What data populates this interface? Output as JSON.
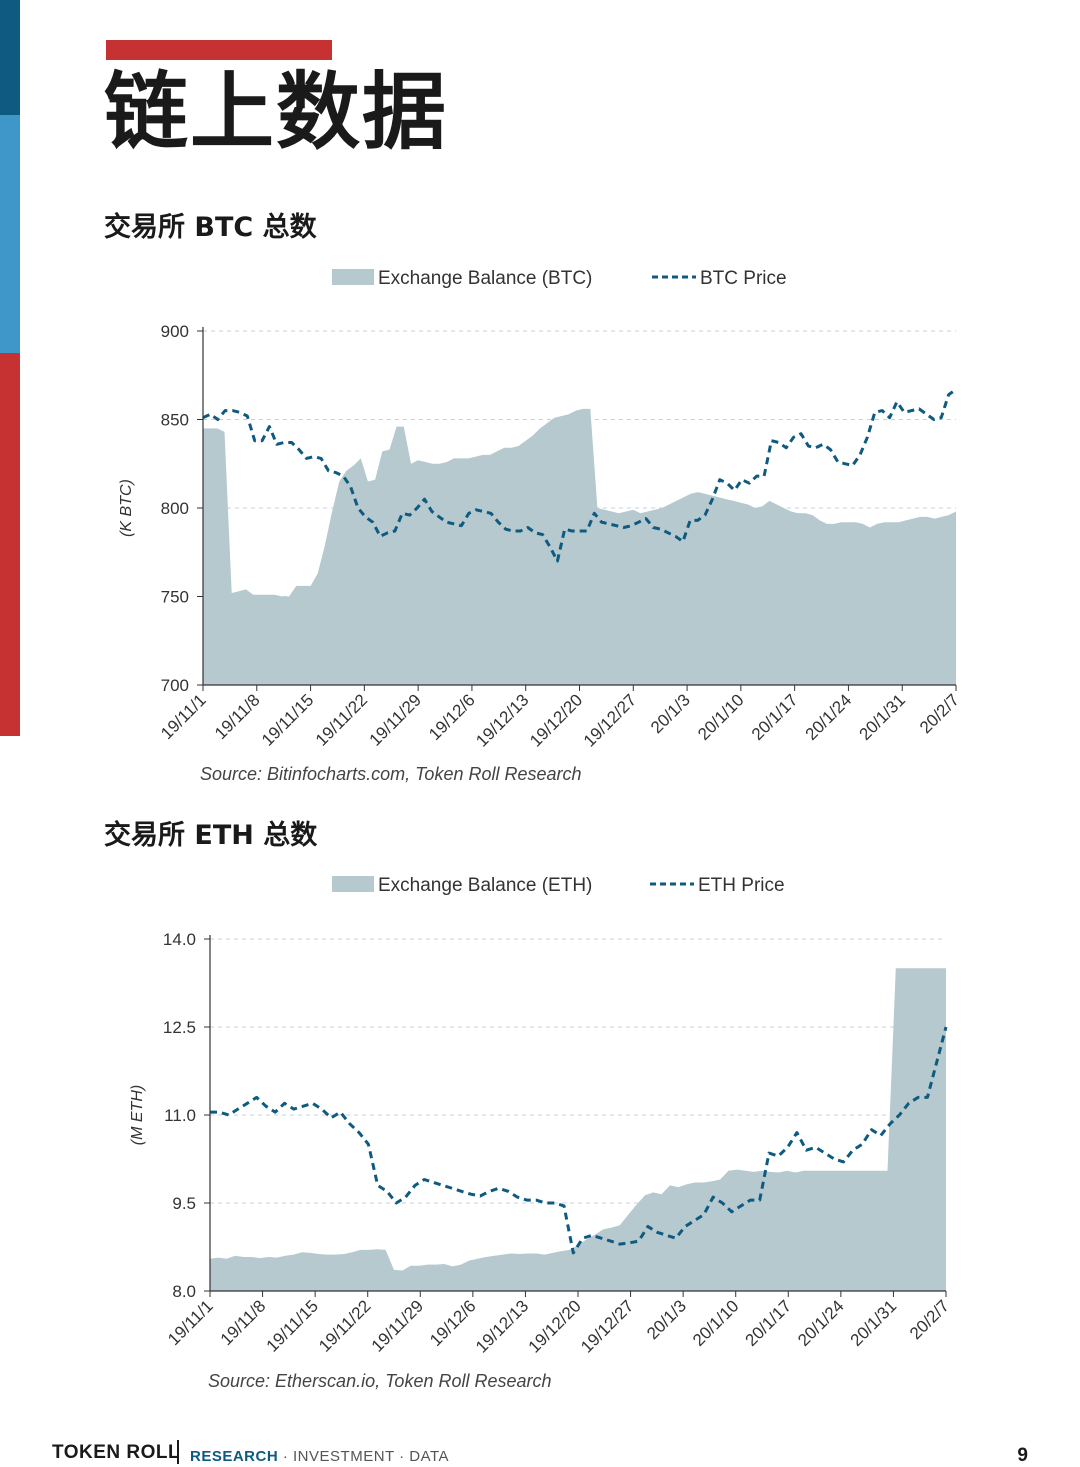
{
  "page": {
    "title": "链上数据",
    "footer_brand": "TOKEN ROLL",
    "footer_tag_first": "RESEARCH",
    "footer_tag_rest": " · INVESTMENT · DATA",
    "page_number": "9",
    "accent_color": "#c63231",
    "side_colors": [
      "#0e5a80",
      "#3f97c9",
      "#c63231"
    ]
  },
  "sections": {
    "btc_title": "交易所 BTC 总数",
    "eth_title": "交易所 ETH 总数"
  },
  "chart_data": [
    {
      "type": "area",
      "title": "",
      "xlabel": "",
      "ylabel": "(K BTC)",
      "ylim": [
        700,
        900
      ],
      "yticks": [
        700,
        750,
        800,
        850,
        900
      ],
      "xticks": [
        "19/11/1",
        "19/11/8",
        "19/11/15",
        "19/11/22",
        "19/11/29",
        "19/12/6",
        "19/12/13",
        "19/12/20",
        "19/12/27",
        "20/1/3",
        "20/1/10",
        "20/1/17",
        "20/1/24",
        "20/1/31",
        "20/2/7"
      ],
      "grid": "horizontal dashed",
      "legend_position": "top",
      "source": "Source: Bitinfocharts.com, Token Roll Research",
      "area_color": "#b5c9cf",
      "line_color": "#0e5a80",
      "series": [
        {
          "name": "Exchange Balance (BTC)",
          "style": "area",
          "values": [
            845,
            845,
            845,
            843,
            752,
            753,
            754,
            751,
            751,
            751,
            751,
            750,
            750,
            756,
            756,
            756,
            763,
            779,
            798,
            815,
            821,
            824,
            828,
            815,
            816,
            832,
            833,
            846,
            846,
            825,
            827,
            826,
            825,
            825,
            826,
            828,
            828,
            828,
            829,
            830,
            830,
            832,
            834,
            834,
            835,
            838,
            841,
            845,
            848,
            851,
            852,
            853,
            855,
            856,
            856,
            800,
            799,
            798,
            797,
            798,
            799,
            797,
            798,
            799,
            800,
            802,
            804,
            806,
            808,
            809,
            808,
            807,
            806,
            805,
            804,
            803,
            802,
            800,
            801,
            804,
            802,
            800,
            798,
            797,
            797,
            796,
            793,
            791,
            791,
            792,
            792,
            792,
            791,
            789,
            791,
            792,
            792,
            792,
            793,
            794,
            795,
            795,
            794,
            795,
            796,
            798
          ]
        },
        {
          "name": "BTC Price",
          "style": "dashed-line",
          "values": [
            851,
            853,
            850,
            855,
            855,
            854,
            852,
            838,
            838,
            846,
            836,
            837,
            837,
            833,
            828,
            829,
            828,
            821,
            820,
            818,
            812,
            800,
            795,
            792,
            784,
            786,
            787,
            797,
            796,
            800,
            805,
            798,
            795,
            792,
            791,
            790,
            797,
            799,
            798,
            797,
            792,
            788,
            787,
            787,
            789,
            786,
            785,
            778,
            770,
            788,
            787,
            787,
            787,
            797,
            792,
            791,
            790,
            789,
            790,
            792,
            794,
            789,
            788,
            786,
            784,
            781,
            793,
            793,
            796,
            805,
            816,
            814,
            810,
            816,
            814,
            818,
            818,
            838,
            837,
            834,
            840,
            842,
            835,
            834,
            836,
            833,
            826,
            825,
            824,
            830,
            840,
            854,
            855,
            851,
            860,
            854,
            855,
            856,
            853,
            850,
            851,
            864,
            867
          ]
        }
      ]
    },
    {
      "type": "area",
      "title": "",
      "xlabel": "",
      "ylabel": "(M ETH)",
      "ylim": [
        8.0,
        14.0
      ],
      "yticks": [
        8.0,
        9.5,
        11.0,
        12.5,
        14.0
      ],
      "xticks": [
        "19/11/1",
        "19/11/8",
        "19/11/15",
        "19/11/22",
        "19/11/29",
        "19/12/6",
        "19/12/13",
        "19/12/20",
        "19/12/27",
        "20/1/3",
        "20/1/10",
        "20/1/17",
        "20/1/24",
        "20/1/31",
        "20/2/7"
      ],
      "grid": "horizontal dashed",
      "legend_position": "top",
      "source": "Source: Etherscan.io, Token Roll Research",
      "area_color": "#b5c9cf",
      "line_color": "#0e5a80",
      "series": [
        {
          "name": "Exchange Balance (ETH)",
          "style": "area",
          "values": [
            8.55,
            8.57,
            8.55,
            8.6,
            8.58,
            8.58,
            8.56,
            8.58,
            8.57,
            8.6,
            8.62,
            8.66,
            8.65,
            8.63,
            8.62,
            8.62,
            8.63,
            8.66,
            8.7,
            8.7,
            8.71,
            8.7,
            8.36,
            8.35,
            8.43,
            8.43,
            8.45,
            8.45,
            8.46,
            8.42,
            8.45,
            8.52,
            8.55,
            8.58,
            8.6,
            8.62,
            8.64,
            8.63,
            8.64,
            8.64,
            8.62,
            8.65,
            8.68,
            8.7,
            8.78,
            8.88,
            8.96,
            9.05,
            9.08,
            9.12,
            9.3,
            9.47,
            9.63,
            9.68,
            9.65,
            9.8,
            9.77,
            9.82,
            9.85,
            9.85,
            9.87,
            9.9,
            10.05,
            10.07,
            10.05,
            10.03,
            10.05,
            10.03,
            10.02,
            10.05,
            10.02,
            10.05,
            10.05,
            10.05,
            10.05,
            10.05,
            10.05,
            10.05,
            10.05,
            10.05,
            10.05,
            10.05,
            13.5,
            13.5,
            13.5,
            13.5,
            13.5,
            13.5,
            13.5
          ]
        },
        {
          "name": "ETH Price",
          "style": "dashed-line",
          "values": [
            11.05,
            11.05,
            11.0,
            11.1,
            11.2,
            11.3,
            11.15,
            11.05,
            11.2,
            11.1,
            11.15,
            11.2,
            11.1,
            10.95,
            11.05,
            10.85,
            10.7,
            10.5,
            9.8,
            9.7,
            9.5,
            9.6,
            9.8,
            9.9,
            9.85,
            9.8,
            9.75,
            9.7,
            9.65,
            9.62,
            9.7,
            9.75,
            9.7,
            9.6,
            9.55,
            9.55,
            9.5,
            9.5,
            9.45,
            8.65,
            8.9,
            8.95,
            8.9,
            8.85,
            8.8,
            8.82,
            8.85,
            9.1,
            9.0,
            8.95,
            8.9,
            9.1,
            9.2,
            9.3,
            9.6,
            9.5,
            9.35,
            9.45,
            9.55,
            9.55,
            10.35,
            10.3,
            10.45,
            10.7,
            10.4,
            10.45,
            10.35,
            10.25,
            10.2,
            10.4,
            10.5,
            10.75,
            10.65,
            10.85,
            11.0,
            11.2,
            11.3,
            11.3,
            11.9,
            12.5
          ]
        }
      ]
    }
  ]
}
